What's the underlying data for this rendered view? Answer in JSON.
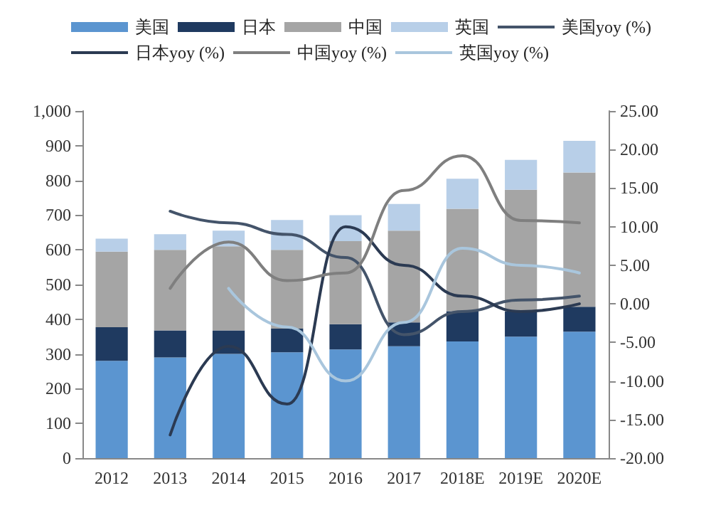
{
  "chart_data": {
    "type": "bar",
    "stacked": true,
    "legend": "top",
    "marker": "none",
    "grid": false,
    "categories": [
      "2012",
      "2013",
      "2014",
      "2015",
      "2016",
      "2017",
      "2018E",
      "2019E",
      "2020E"
    ],
    "series": [
      {
        "name": "美国",
        "color": "#5b95d0",
        "values": [
          280,
          290,
          300,
          305,
          313,
          322,
          336,
          350,
          364
        ]
      },
      {
        "name": "日本",
        "color": "#1f3a60",
        "values": [
          97,
          78,
          68,
          68,
          73,
          69,
          87,
          73,
          72
        ]
      },
      {
        "name": "中国",
        "color": "#a5a5a5",
        "values": [
          218,
          232,
          242,
          227,
          239,
          264,
          295,
          350,
          387
        ]
      },
      {
        "name": "英国",
        "color": "#b8cfe8",
        "values": [
          37,
          45,
          45,
          86,
          75,
          77,
          87,
          86,
          91
        ]
      },
      {
        "name": "美国yoy (%)",
        "type": "line",
        "axis": "y2",
        "color": "#44546a",
        "values": [
          null,
          12,
          10.5,
          9,
          6,
          -4,
          -1,
          0.5,
          1
        ]
      },
      {
        "name": "日本yoy (%)",
        "type": "line",
        "axis": "y2",
        "color": "#2b3a52",
        "values": [
          null,
          -17,
          -5.5,
          -13,
          10,
          5,
          1,
          -1,
          0
        ]
      },
      {
        "name": "中国yoy (%)",
        "type": "line",
        "axis": "y2",
        "color": "#7f7f7f",
        "values": [
          null,
          2,
          8,
          3,
          4,
          14.7,
          19.2,
          10.8,
          10.5
        ]
      },
      {
        "name": "英国yoy (%)",
        "type": "line",
        "axis": "y2",
        "color": "#a9c6dd",
        "values": [
          null,
          null,
          2,
          -3,
          -10,
          -2.4,
          7.2,
          5,
          4
        ]
      }
    ],
    "ylim": [
      0,
      1000
    ],
    "yticks": [
      0,
      100,
      200,
      300,
      400,
      500,
      600,
      700,
      800,
      900,
      {
        "value": 1000,
        "label": "1,000"
      }
    ],
    "y2lim": [
      -20,
      25
    ],
    "y2ticks": [
      {
        "value": -20,
        "label": "-20.00"
      },
      {
        "value": -15,
        "label": "-15.00"
      },
      {
        "value": -10,
        "label": "-10.00"
      },
      {
        "value": -5,
        "label": "-5.00"
      },
      {
        "value": 0,
        "label": "0.00"
      },
      {
        "value": 5,
        "label": "5.00"
      },
      {
        "value": 10,
        "label": "10.00"
      },
      {
        "value": 15,
        "label": "15.00"
      },
      {
        "value": 20,
        "label": "20.00"
      },
      {
        "value": 25,
        "label": "25.00"
      }
    ]
  }
}
